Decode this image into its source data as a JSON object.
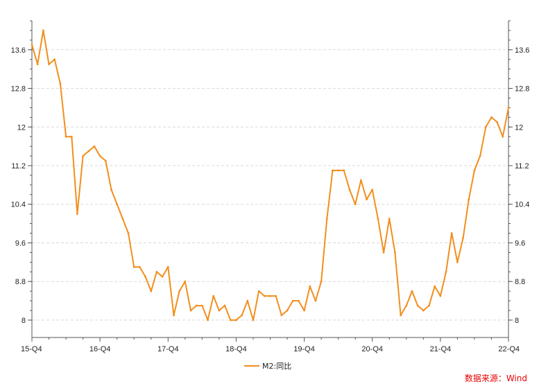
{
  "chart_data": {
    "type": "line",
    "title": "",
    "xlabel": "",
    "ylabel": "",
    "ylim": [
      7.64,
      14.2
    ],
    "yticks": [
      8,
      8.8,
      9.6,
      10.4,
      11.2,
      12,
      12.8,
      13.6
    ],
    "ytick_labels": [
      "8",
      "8.8",
      "9.6",
      "10.4",
      "11.2",
      "12",
      "12.8",
      "13.6"
    ],
    "x_range": [
      0,
      84
    ],
    "x_ticks": [
      0,
      12,
      24,
      36,
      48,
      60,
      72,
      84
    ],
    "x_tick_labels": [
      "15-Q4",
      "16-Q4",
      "17-Q4",
      "18-Q4",
      "19-Q4",
      "20-Q4",
      "21-Q4",
      "22-Q4"
    ],
    "grid": true,
    "legend": "bottom-center",
    "colors": {
      "line": "#f28e1c",
      "axis": "#555555",
      "grid": "#d9d9d9",
      "source": "#e60000"
    },
    "series": [
      {
        "name": "M2:同比",
        "values": [
          13.7,
          13.3,
          14.0,
          13.3,
          13.4,
          12.9,
          11.8,
          11.8,
          10.2,
          11.4,
          11.5,
          11.6,
          11.4,
          11.3,
          10.7,
          10.4,
          10.1,
          9.8,
          9.1,
          9.1,
          8.9,
          8.6,
          9.0,
          8.9,
          9.1,
          8.1,
          8.6,
          8.8,
          8.2,
          8.3,
          8.3,
          8.0,
          8.5,
          8.2,
          8.3,
          8.0,
          8.0,
          8.1,
          8.4,
          8.0,
          8.6,
          8.5,
          8.5,
          8.5,
          8.1,
          8.2,
          8.4,
          8.4,
          8.2,
          8.7,
          8.4,
          8.8,
          10.1,
          11.1,
          11.1,
          11.1,
          10.7,
          10.4,
          10.9,
          10.5,
          10.7,
          10.1,
          9.4,
          10.1,
          9.4,
          8.1,
          8.3,
          8.6,
          8.3,
          8.2,
          8.3,
          8.7,
          8.5,
          9.0,
          9.8,
          9.2,
          9.7,
          10.5,
          11.1,
          11.4,
          12.0,
          12.2,
          12.1,
          11.8,
          12.4
        ]
      }
    ],
    "source": "数据来源：Wind"
  }
}
